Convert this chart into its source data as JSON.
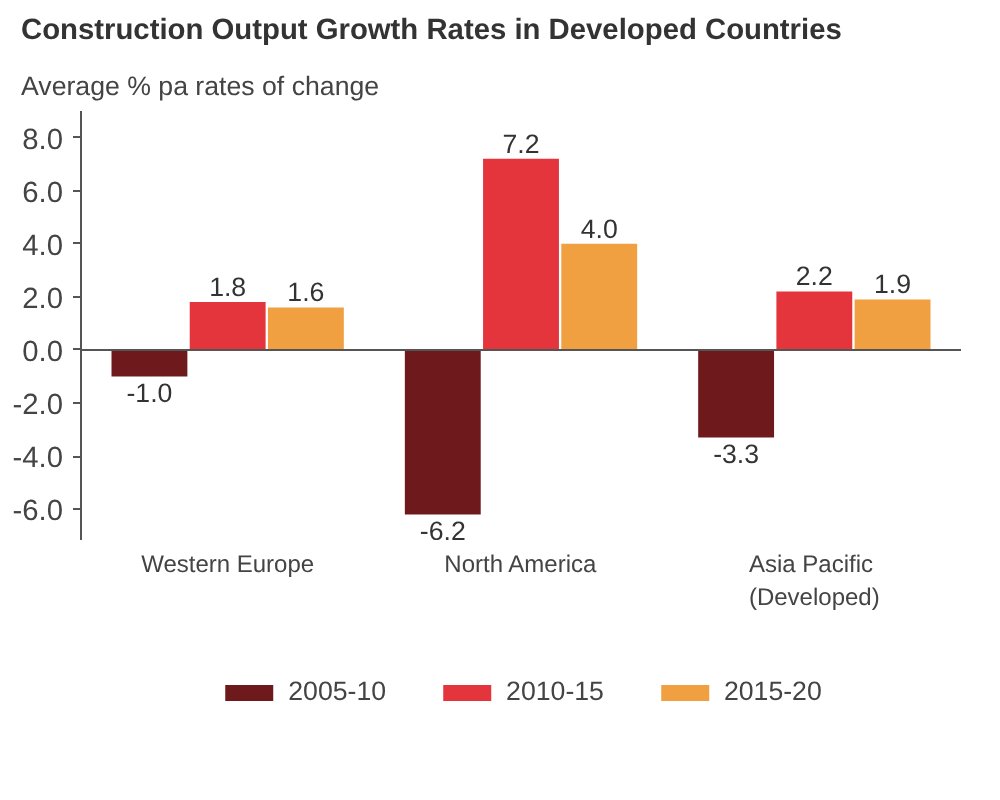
{
  "chart_data": {
    "type": "bar",
    "title": "Construction Output Growth Rates in Developed Countries",
    "subtitle": "Average % pa rates of change",
    "categories": [
      "Western Europe",
      "North America",
      "Asia Pacific\n(Developed)"
    ],
    "series": [
      {
        "name": "2005-10",
        "color": "#6e1a1c",
        "values": [
          -1.0,
          -6.2,
          -3.3
        ],
        "value_labels": [
          "-1.0",
          "-6.2",
          "-3.3"
        ]
      },
      {
        "name": "2010-15",
        "color": "#e4353c",
        "values": [
          1.8,
          7.2,
          2.2
        ],
        "value_labels": [
          "1.8",
          "7.2",
          "2.2"
        ]
      },
      {
        "name": "2015-20",
        "color": "#f0a040",
        "values": [
          1.6,
          4.0,
          1.9
        ],
        "value_labels": [
          "1.6",
          "4.0",
          "1.9"
        ]
      }
    ],
    "ylim": [
      -7.2,
      9.0
    ],
    "yticks": [
      {
        "value": -6,
        "label": "-6.0"
      },
      {
        "value": -4,
        "label": "-4.0"
      },
      {
        "value": -2,
        "label": "-2.0"
      },
      {
        "value": 0,
        "label": "0.0"
      },
      {
        "value": 2,
        "label": "2.0"
      },
      {
        "value": 4,
        "label": "4.0"
      },
      {
        "value": 6,
        "label": "6.0"
      },
      {
        "value": 8,
        "label": "8.0"
      }
    ],
    "ref_lines": [
      {
        "axis": "y",
        "value": 0,
        "color": "#555555"
      }
    ],
    "grid": false,
    "legend": "bottom"
  }
}
